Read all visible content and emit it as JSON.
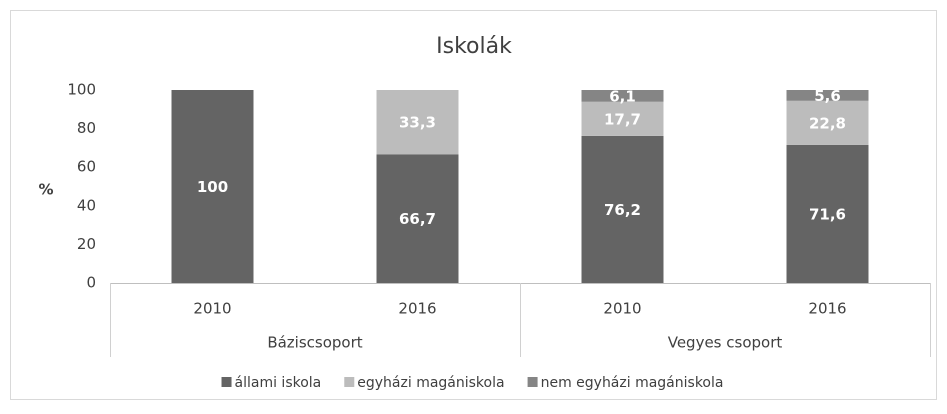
{
  "chart_data": {
    "type": "stacked_bar",
    "title": "Iskolák",
    "y_label": "%",
    "categories": [
      "2010",
      "2016",
      "2010",
      "2016"
    ],
    "groups": [
      {
        "name": "Báziscsoport",
        "size": 2
      },
      {
        "name": "Vegyes csoport",
        "size": 2
      }
    ],
    "series": [
      {
        "name": "állami iskola",
        "color": "#646464",
        "values": [
          100,
          66.7,
          76.2,
          71.6
        ],
        "value_labels": [
          "100",
          "66,7",
          "76,2",
          "71,6"
        ]
      },
      {
        "name": "egyházi magániskola",
        "color": "#bcbcbc",
        "values": [
          null,
          33.3,
          17.7,
          22.8
        ],
        "value_labels": [
          null,
          "33,3",
          "17,7",
          "22,8"
        ]
      },
      {
        "name": "nem egyházi magániskola",
        "color": "#858585",
        "values": [
          null,
          null,
          6.1,
          5.6
        ],
        "value_labels": [
          null,
          null,
          "6,1",
          "5,6"
        ]
      }
    ],
    "ylim": [
      0,
      100
    ],
    "yticks": [
      0,
      20,
      40,
      60,
      80,
      100
    ],
    "grid": false,
    "legend": "bottom"
  }
}
